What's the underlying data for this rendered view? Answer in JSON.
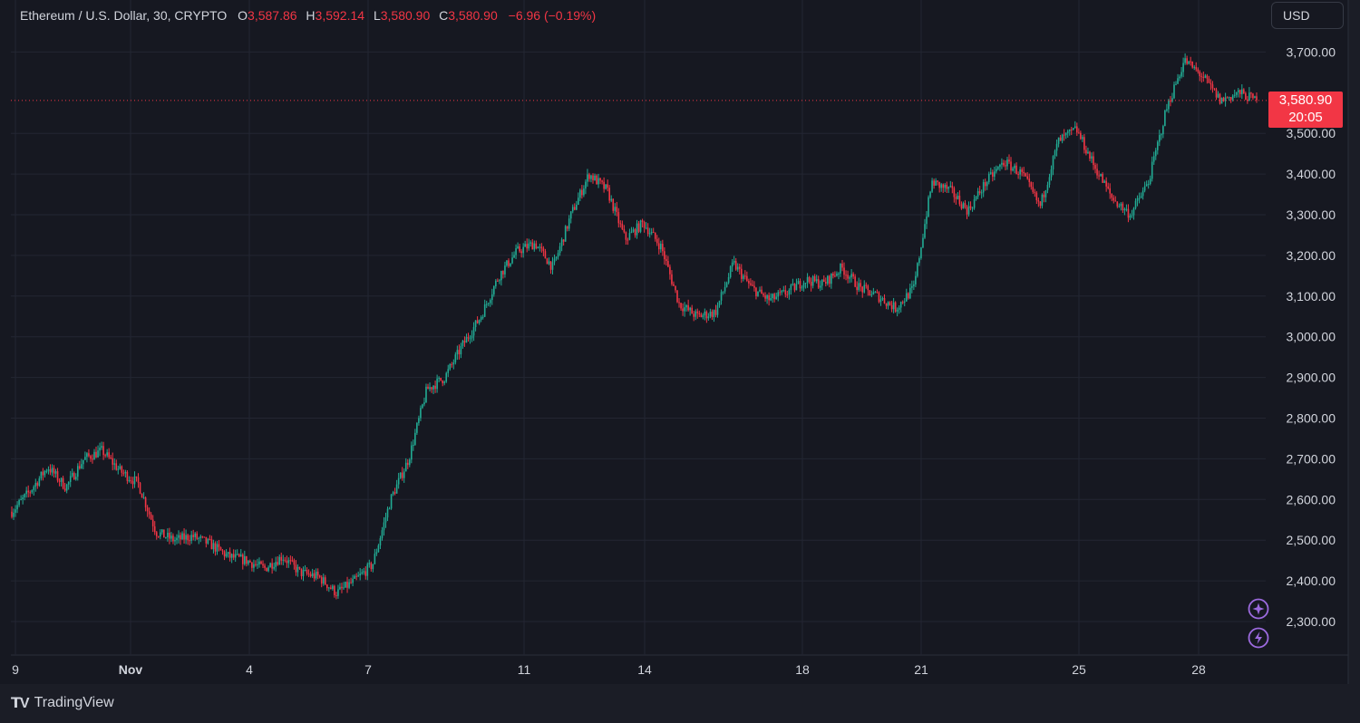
{
  "header": {
    "symbol": "Ethereum / U.S. Dollar, 30, CRYPTO",
    "open_label": "O",
    "open": "3,587.86",
    "high_label": "H",
    "high": "3,592.14",
    "low_label": "L",
    "low": "3,580.90",
    "close_label": "C",
    "close": "3,580.90",
    "change": "−6.96 (−0.19%)"
  },
  "currency": "USD",
  "last_price": {
    "value": "3,580.90",
    "countdown": "20:05"
  },
  "footer": {
    "brand": "TradingView"
  },
  "colors": {
    "up": "#22ab94",
    "down": "#f23645",
    "background": "#161821",
    "grid": "#232632",
    "text": "#d1d4dc"
  },
  "icons": [
    "ai-sparkle-icon",
    "lightning-icon"
  ],
  "chart_data": {
    "type": "candlestick",
    "timeframe": "30",
    "x_ticks": [
      "9",
      "Nov",
      "4",
      "7",
      "11",
      "14",
      "18",
      "21",
      "25",
      "28"
    ],
    "y_ticks": [
      "2,300.00",
      "2,400.00",
      "2,500.00",
      "2,600.00",
      "2,700.00",
      "2,800.00",
      "2,900.00",
      "3,000.00",
      "3,100.00",
      "3,200.00",
      "3,300.00",
      "3,400.00",
      "3,500.00",
      "3,700.00"
    ],
    "ylim": [
      2230,
      3735
    ],
    "grid": true,
    "last_price": 3580.9,
    "price_path": [
      2570,
      2620,
      2680,
      2630,
      2700,
      2720,
      2670,
      2640,
      2520,
      2500,
      2510,
      2490,
      2460,
      2450,
      2430,
      2460,
      2420,
      2410,
      2370,
      2400,
      2440,
      2600,
      2700,
      2870,
      2900,
      2980,
      3050,
      3150,
      3210,
      3230,
      3170,
      3300,
      3400,
      3360,
      3240,
      3280,
      3220,
      3080,
      3050,
      3060,
      3180,
      3120,
      3090,
      3110,
      3140,
      3130,
      3170,
      3120,
      3100,
      3070,
      3120,
      3380,
      3360,
      3310,
      3380,
      3430,
      3400,
      3320,
      3480,
      3510,
      3420,
      3340,
      3300,
      3380,
      3560,
      3680,
      3640,
      3580,
      3600,
      3581
    ]
  }
}
